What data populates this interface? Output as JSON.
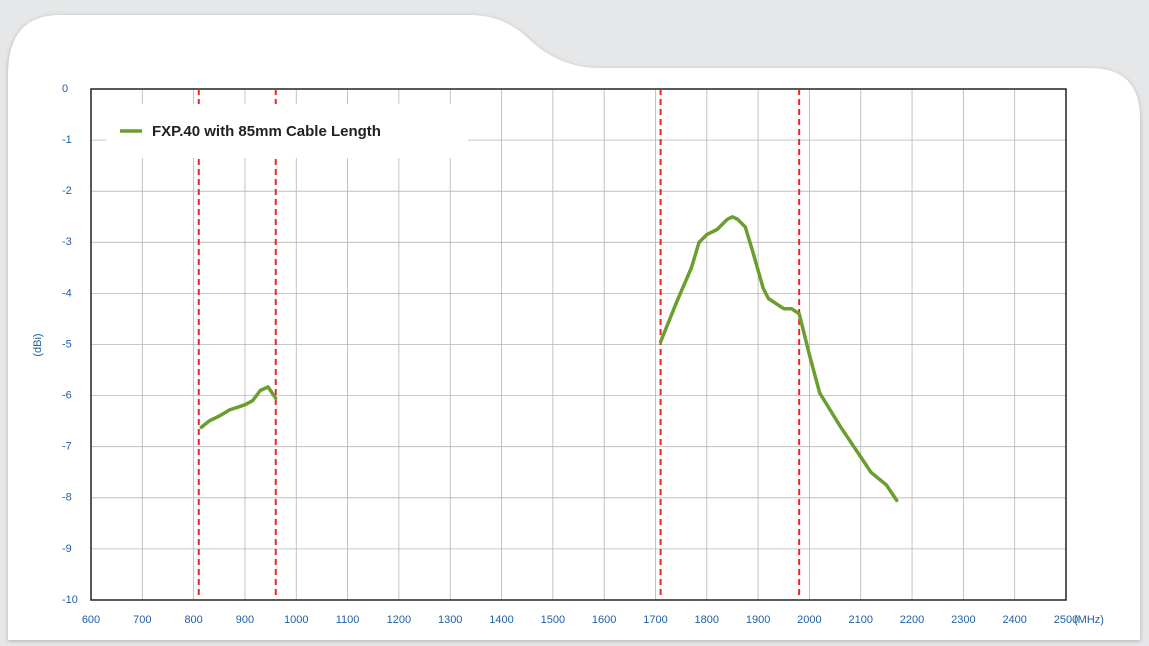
{
  "chart_data": {
    "type": "line",
    "x": [
      815,
      830,
      850,
      870,
      900,
      915,
      930,
      945,
      960,
      null,
      1710,
      1740,
      1770,
      1785,
      1800,
      1820,
      1840,
      1850,
      1860,
      1875,
      1890,
      1910,
      1920,
      1950,
      1965,
      1980,
      2000,
      2020,
      2060,
      2100,
      2120,
      2150,
      2170
    ],
    "series": [
      {
        "name": "FXP.40 with 85mm Cable Length",
        "color": "#6a9e2f",
        "values": [
          -6.62,
          -6.5,
          -6.4,
          -6.28,
          -6.18,
          -6.1,
          -5.9,
          -5.83,
          -6.05,
          null,
          -4.95,
          -4.2,
          -3.5,
          -3.0,
          -2.85,
          -2.75,
          -2.55,
          -2.5,
          -2.55,
          -2.7,
          -3.2,
          -3.9,
          -4.1,
          -4.3,
          -4.3,
          -4.4,
          -5.2,
          -5.95,
          -6.6,
          -7.2,
          -7.5,
          -7.75,
          -8.05
        ]
      }
    ],
    "xlim": [
      600,
      2500
    ],
    "ylim": [
      -10,
      0
    ],
    "xticks": [
      600,
      700,
      800,
      900,
      1000,
      1100,
      1200,
      1300,
      1400,
      1500,
      1600,
      1700,
      1800,
      1900,
      2000,
      2100,
      2200,
      2300,
      2400,
      2500
    ],
    "yticks": [
      0,
      -1,
      -2,
      -3,
      -4,
      -5,
      -6,
      -7,
      -8,
      -9,
      -10
    ],
    "x_unit": "(MHz)",
    "y_label": "(dBi)",
    "band_edges": {
      "values": [
        810,
        960,
        1710,
        1980
      ],
      "color": "#e8262a"
    },
    "grid": true,
    "legend": "upper left"
  }
}
